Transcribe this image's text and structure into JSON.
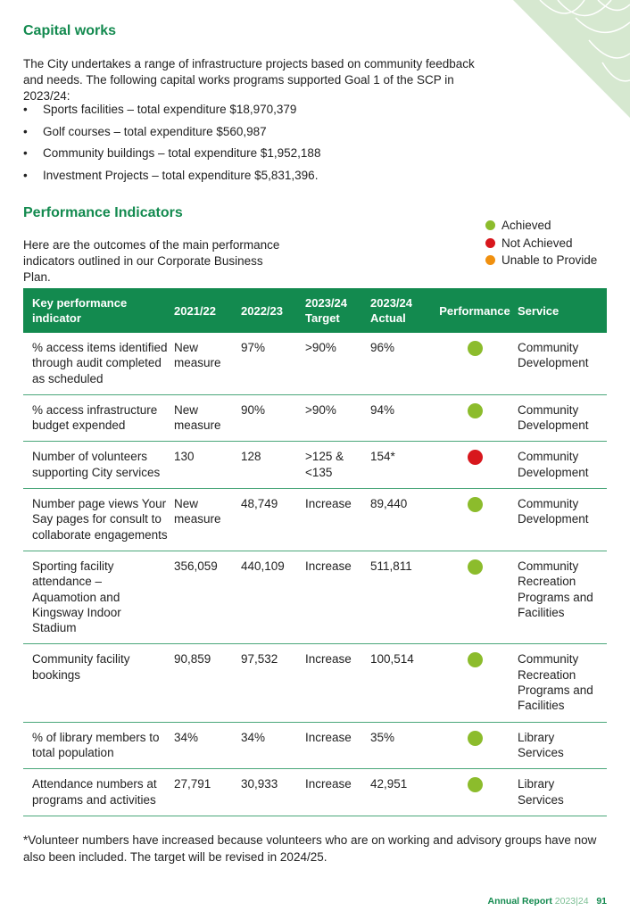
{
  "capital_works": {
    "heading": "Capital works",
    "intro": "The City undertakes a range of infrastructure projects based on community feedback and needs. The following capital works programs supported Goal 1 of the SCP in 2023/24:",
    "items": [
      "Sports facilities – total expenditure $18,970,379",
      "Golf courses – total expenditure $560,987",
      "Community buildings – total expenditure $1,952,188",
      "Investment Projects – total expenditure $5,831,396."
    ]
  },
  "performance": {
    "heading": "Performance Indicators",
    "intro": "Here are the outcomes of the main performance indicators outlined in our Corporate Business Plan.",
    "legend": [
      {
        "label": "Achieved",
        "color": "#8cbc2c"
      },
      {
        "label": "Not Achieved",
        "color": "#d8171d"
      },
      {
        "label": "Unable to Provide",
        "color": "#f0900f"
      }
    ]
  },
  "table": {
    "header": [
      "Key performance indicator",
      "2021/22",
      "2022/23",
      "2023/24 Target",
      "2023/24 Actual",
      "Performance",
      "Service"
    ],
    "rows": [
      {
        "cells": [
          "% access items identified through audit completed as scheduled",
          "New measure",
          "97%",
          ">90%",
          "96%",
          "Community Development"
        ],
        "status": "Achieved"
      },
      {
        "cells": [
          "% access infrastructure budget expended",
          "New measure",
          "90%",
          ">90%",
          "94%",
          "Community Development"
        ],
        "status": "Achieved"
      },
      {
        "cells": [
          "Number of volunteers supporting City services",
          "130",
          "128",
          ">125 & <135",
          "154*",
          "Community Development"
        ],
        "status": "Not Achieved"
      },
      {
        "cells": [
          "Number page views Your Say pages for consult to collaborate engagements",
          "New measure",
          "48,749",
          "Increase",
          "89,440",
          "Community Development"
        ],
        "status": "Achieved"
      },
      {
        "cells": [
          "Sporting facility attendance – Aquamotion and Kingsway Indoor Stadium",
          "356,059",
          "440,109",
          "Increase",
          "511,811",
          "Community Recreation Programs and Facilities"
        ],
        "status": "Achieved"
      },
      {
        "cells": [
          "Community facility bookings",
          "90,859",
          "97,532",
          "Increase",
          "100,514",
          "Community Recreation Programs and Facilities"
        ],
        "status": "Achieved"
      },
      {
        "cells": [
          "% of library members to total population",
          "34%",
          "34%",
          "Increase",
          "35%",
          "Library Services"
        ],
        "status": "Achieved"
      },
      {
        "cells": [
          "Attendance numbers at programs and activities",
          "27,791",
          "30,933",
          "Increase",
          "42,951",
          "Library Services"
        ],
        "status": "Achieved"
      }
    ]
  },
  "footnote": "*Volunteer numbers have increased because volunteers who are on working and advisory groups have now also been included. The target will be revised in 2024/25.",
  "footer": {
    "report": "Annual Report",
    "year": "2023|24",
    "page": "91"
  }
}
